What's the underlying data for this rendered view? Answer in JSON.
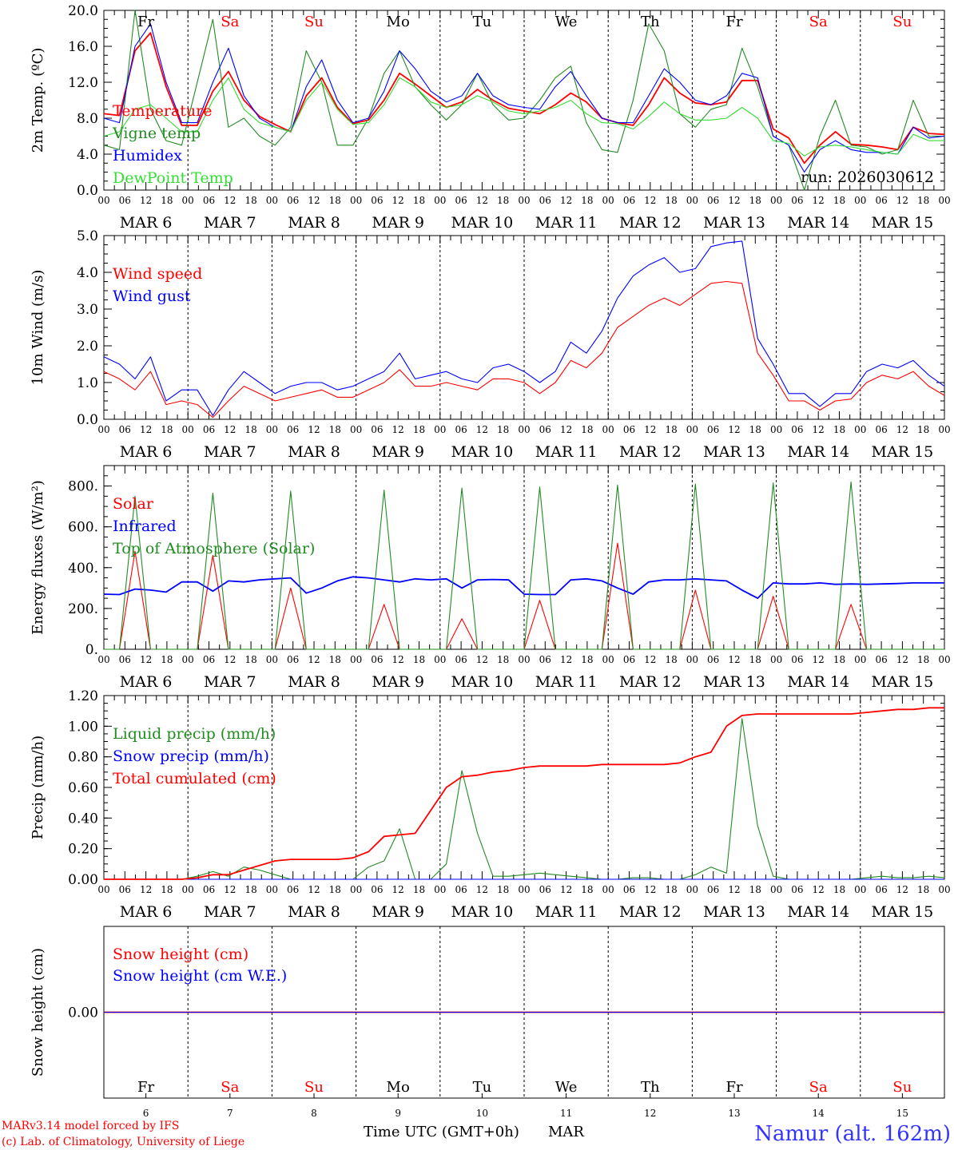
{
  "chart_data": [
    {
      "type": "line",
      "ylabel": "2m Temp. (ºC)",
      "ylim": [
        0,
        20
      ],
      "yticks": [
        "0.0",
        "4.0",
        "8.0",
        "12.0",
        "16.0",
        "20.0"
      ],
      "yticks_values": [
        0,
        4,
        8,
        12,
        16,
        20
      ],
      "run_label": "run: 2026030612",
      "weekday_labels": [
        {
          "text": "Fr",
          "weekend": false
        },
        {
          "text": "Sa",
          "weekend": true
        },
        {
          "text": "Su",
          "weekend": true
        },
        {
          "text": "Mo",
          "weekend": false
        },
        {
          "text": "Tu",
          "weekend": false
        },
        {
          "text": "We",
          "weekend": false
        },
        {
          "text": "Th",
          "weekend": false
        },
        {
          "text": "Fr",
          "weekend": false
        },
        {
          "text": "Sa",
          "weekend": true
        },
        {
          "text": "Su",
          "weekend": true
        }
      ],
      "x_hours_note": "series values every 6 h from Mar 6 00 UTC (day 0) to Mar 16 00 UTC",
      "series": [
        {
          "name": "Temperature",
          "color": "#ff0000",
          "values": [
            8.5,
            8.3,
            15.5,
            17.5,
            11.5,
            7.2,
            7.2,
            11,
            13.2,
            10,
            8.2,
            7.3,
            6.5,
            10.5,
            12.5,
            9.2,
            7.4,
            7.8,
            10,
            13,
            11.8,
            10.5,
            9.2,
            9.8,
            11.2,
            10,
            9.1,
            8.8,
            8.5,
            9.5,
            10.8,
            9.8,
            8,
            7.5,
            7.2,
            9.5,
            12.5,
            10.8,
            9.7,
            9.5,
            9.8,
            12.2,
            12.2,
            6.8,
            5.8,
            3,
            5,
            6.5,
            5.1,
            5,
            4.8,
            4.5,
            7,
            6.3,
            6.2
          ]
        },
        {
          "name": "Vigne temp",
          "color": "#228b22",
          "values": [
            5,
            4.5,
            20,
            9,
            5.5,
            5,
            12,
            19,
            7,
            8,
            6,
            5,
            7,
            15.5,
            12,
            5,
            5,
            8,
            13,
            15.5,
            11.5,
            9.5,
            7.8,
            9.5,
            13,
            9.5,
            7.8,
            8,
            10,
            12.5,
            13.8,
            7.5,
            4.5,
            4.2,
            10,
            18.5,
            15.5,
            8.5,
            7,
            9,
            9.5,
            15.8,
            11.5,
            6,
            5,
            0,
            6,
            10,
            5,
            4.8,
            4,
            4.5,
            10,
            6,
            6
          ]
        },
        {
          "name": "Humidex",
          "color": "#0000ff",
          "values": [
            8,
            7.5,
            16,
            18.5,
            12,
            7.5,
            7.5,
            12,
            15.8,
            10.5,
            8,
            7,
            6.5,
            11.5,
            14.5,
            10,
            7.5,
            8,
            11,
            15.5,
            13.5,
            11,
            9.8,
            10.5,
            13,
            10.5,
            9.5,
            9.2,
            9,
            11.5,
            13.2,
            10.5,
            8,
            7.5,
            7.5,
            10.5,
            13.5,
            12,
            10,
            9.5,
            10.5,
            13,
            12.5,
            6,
            5,
            2,
            4.5,
            5.5,
            4.5,
            4.2,
            4.2,
            4,
            7,
            5.8,
            6
          ]
        },
        {
          "name": "DewPoint Temp",
          "color": "#33dd33",
          "values": [
            6,
            6.5,
            9,
            9.5,
            8,
            6.5,
            6.5,
            10,
            12.5,
            9,
            7.5,
            7,
            6.5,
            10,
            12,
            9,
            7.3,
            7.5,
            9.5,
            12.5,
            11.5,
            9.8,
            9.2,
            9.5,
            10.5,
            9.8,
            8.8,
            8.5,
            8.8,
            9.2,
            10,
            8.5,
            7.5,
            7.4,
            6.8,
            8.2,
            9.8,
            8.5,
            7.8,
            7.8,
            8,
            9.2,
            8,
            5.5,
            5.2,
            3.8,
            4.8,
            5,
            4.8,
            4.5,
            4.2,
            4,
            6.2,
            5.5,
            5.5
          ]
        }
      ]
    },
    {
      "type": "line",
      "ylabel": "10m Wind (m/s)",
      "ylim": [
        0,
        5
      ],
      "yticks": [
        "0.0",
        "1.0",
        "2.0",
        "3.0",
        "4.0",
        "5.0"
      ],
      "yticks_values": [
        0,
        1,
        2,
        3,
        4,
        5
      ],
      "series": [
        {
          "name": "Wind speed",
          "color": "#ff0000",
          "values": [
            1.3,
            1.1,
            0.8,
            1.3,
            0.4,
            0.5,
            0.4,
            0.05,
            0.5,
            0.9,
            0.7,
            0.5,
            0.6,
            0.7,
            0.8,
            0.6,
            0.6,
            0.8,
            1,
            1.35,
            0.9,
            0.9,
            1,
            0.9,
            0.8,
            1.1,
            1.1,
            1,
            0.7,
            1,
            1.6,
            1.4,
            1.8,
            2.5,
            2.8,
            3.1,
            3.3,
            3.1,
            3.4,
            3.7,
            3.75,
            3.7,
            1.8,
            1.2,
            0.5,
            0.5,
            0.25,
            0.5,
            0.55,
            1,
            1.2,
            1.1,
            1.3,
            0.9,
            0.65
          ]
        },
        {
          "name": "Wind gust",
          "color": "#0000ff",
          "values": [
            1.7,
            1.5,
            1.1,
            1.7,
            0.5,
            0.8,
            0.8,
            0.1,
            0.8,
            1.3,
            1,
            0.7,
            0.9,
            1,
            1,
            0.8,
            0.9,
            1.1,
            1.3,
            1.8,
            1.1,
            1.2,
            1.3,
            1.1,
            1,
            1.4,
            1.5,
            1.3,
            1,
            1.3,
            2.1,
            1.8,
            2.4,
            3.3,
            3.9,
            4.2,
            4.4,
            4,
            4.1,
            4.7,
            4.8,
            4.85,
            2.2,
            1.5,
            0.7,
            0.7,
            0.35,
            0.7,
            0.7,
            1.3,
            1.5,
            1.4,
            1.6,
            1.2,
            0.9
          ]
        }
      ]
    },
    {
      "type": "line",
      "ylabel": "Energy fluxes (W/m²)",
      "ylim": [
        0,
        900
      ],
      "yticks": [
        "0.",
        "200.",
        "400.",
        "600.",
        "800."
      ],
      "yticks_values": [
        0,
        200,
        400,
        600,
        800
      ],
      "series": [
        {
          "name": "Solar",
          "color": "#ff0000",
          "values": [
            0,
            0,
            480,
            0,
            0,
            0,
            0,
            460,
            0,
            0,
            0,
            0,
            300,
            0,
            0,
            0,
            0,
            0,
            220,
            0,
            0,
            0,
            0,
            150,
            0,
            0,
            0,
            0,
            240,
            0,
            0,
            0,
            0,
            520,
            0,
            0,
            0,
            0,
            290,
            0,
            0,
            0,
            0,
            260,
            0,
            0,
            0,
            0,
            220,
            0,
            0,
            0,
            0,
            0,
            0
          ]
        },
        {
          "name": "Infrared",
          "color": "#0000ff",
          "values": [
            270,
            268,
            295,
            290,
            280,
            330,
            330,
            285,
            335,
            330,
            340,
            345,
            350,
            275,
            300,
            335,
            355,
            350,
            340,
            330,
            345,
            340,
            345,
            300,
            340,
            342,
            340,
            270,
            268,
            268,
            340,
            345,
            335,
            300,
            270,
            330,
            340,
            340,
            345,
            340,
            335,
            290,
            250,
            325,
            320,
            320,
            325,
            318,
            320,
            318,
            320,
            322,
            325,
            325,
            325
          ]
        },
        {
          "name": "Top of Atmosphere (Solar)",
          "color": "#228b22",
          "values": [
            0,
            0,
            750,
            0,
            0,
            0,
            0,
            765,
            0,
            0,
            0,
            0,
            775,
            0,
            0,
            0,
            0,
            0,
            780,
            0,
            0,
            0,
            0,
            790,
            0,
            0,
            0,
            0,
            795,
            0,
            0,
            0,
            0,
            805,
            0,
            0,
            0,
            0,
            810,
            0,
            0,
            0,
            0,
            815,
            0,
            0,
            0,
            0,
            820,
            0,
            0,
            0,
            0,
            0,
            0
          ]
        }
      ]
    },
    {
      "type": "line",
      "ylabel": "Precip (mm/h)",
      "ylim": [
        0,
        1.2
      ],
      "yticks": [
        "0.00",
        "0.20",
        "0.40",
        "0.60",
        "0.80",
        "1.00",
        "1.20"
      ],
      "yticks_values": [
        0,
        0.2,
        0.4,
        0.6,
        0.8,
        1.0,
        1.2
      ],
      "series": [
        {
          "name": "Liquid precip (mm/h)",
          "color": "#228b22",
          "values": [
            0,
            0,
            0,
            0,
            0,
            0,
            0.02,
            0.05,
            0.02,
            0.08,
            0.06,
            0.03,
            0,
            0,
            0,
            0,
            0,
            0.08,
            0.12,
            0.33,
            0,
            0,
            0.1,
            0.71,
            0.3,
            0.02,
            0.02,
            0.03,
            0.04,
            0.03,
            0.02,
            0.01,
            0,
            0,
            0.01,
            0.01,
            0,
            0,
            0.03,
            0.08,
            0.04,
            1.05,
            0.35,
            0.02,
            0,
            0,
            0,
            0,
            0,
            0.01,
            0.02,
            0.01,
            0.01,
            0.02,
            0.01
          ]
        },
        {
          "name": "Snow precip (mm/h)",
          "color": "#0000ff",
          "values": [
            0,
            0,
            0,
            0,
            0,
            0,
            0,
            0,
            0,
            0,
            0,
            0,
            0,
            0,
            0,
            0,
            0,
            0,
            0,
            0,
            0,
            0,
            0,
            0,
            0,
            0,
            0,
            0,
            0,
            0,
            0,
            0,
            0,
            0,
            0,
            0,
            0,
            0,
            0,
            0,
            0,
            0,
            0,
            0,
            0,
            0,
            0,
            0,
            0,
            0,
            0,
            0,
            0,
            0,
            0
          ]
        },
        {
          "name": "Total cumulated (cm)",
          "color": "#ff0000",
          "values": [
            0,
            0,
            0,
            0,
            0,
            0,
            0.01,
            0.03,
            0.03,
            0.06,
            0.09,
            0.12,
            0.13,
            0.13,
            0.13,
            0.13,
            0.14,
            0.18,
            0.28,
            0.29,
            0.3,
            0.45,
            0.6,
            0.67,
            0.68,
            0.7,
            0.71,
            0.73,
            0.74,
            0.74,
            0.74,
            0.74,
            0.75,
            0.75,
            0.75,
            0.75,
            0.75,
            0.76,
            0.8,
            0.83,
            1.0,
            1.07,
            1.08,
            1.08,
            1.08,
            1.08,
            1.08,
            1.08,
            1.08,
            1.09,
            1.1,
            1.11,
            1.11,
            1.12,
            1.12
          ]
        }
      ]
    },
    {
      "type": "line",
      "ylabel": "Snow height (cm)",
      "ylim": [
        -1,
        1
      ],
      "yticks": [
        "0.00"
      ],
      "yticks_values": [
        0
      ],
      "series": [
        {
          "name": "Snow height (cm)",
          "color": "#ff0000",
          "values": [
            0,
            0
          ]
        },
        {
          "name": "Snow height (cm W.E.)",
          "color": "#0000ff",
          "values": [
            0,
            0
          ]
        }
      ],
      "weekday_labels": [
        {
          "text": "Fr",
          "weekend": false
        },
        {
          "text": "Sa",
          "weekend": true
        },
        {
          "text": "Su",
          "weekend": true
        },
        {
          "text": "Mo",
          "weekend": false
        },
        {
          "text": "Tu",
          "weekend": false
        },
        {
          "text": "We",
          "weekend": false
        },
        {
          "text": "Th",
          "weekend": false
        },
        {
          "text": "Fr",
          "weekend": false
        },
        {
          "text": "Sa",
          "weekend": true
        },
        {
          "text": "Su",
          "weekend": true
        }
      ],
      "day_numbers": [
        "6",
        "7",
        "8",
        "9",
        "10",
        "11",
        "12",
        "13",
        "14",
        "15"
      ]
    }
  ],
  "time_axis": {
    "hour_labels": [
      "00",
      "06",
      "12",
      "18"
    ],
    "final_hour_label": "00",
    "date_labels": [
      "MAR  6",
      "MAR  7",
      "MAR  8",
      "MAR  9",
      "MAR 10",
      "MAR 11",
      "MAR 12",
      "MAR 13",
      "MAR 14",
      "MAR 15"
    ],
    "xlabel": "Time UTC (GMT+0h)",
    "month": "MAR"
  },
  "footer": {
    "model_line": "MARv3.14 model forced by IFS",
    "credit_line": "(c) Lab. of Climatology, University of Liege",
    "station": "Namur (alt. 162m)"
  },
  "colors": {
    "red": "#ff0000",
    "blue": "#0000ff",
    "green": "#228b22",
    "lightgreen": "#33dd33",
    "station_blue": "#3333ff",
    "black": "#000000"
  }
}
